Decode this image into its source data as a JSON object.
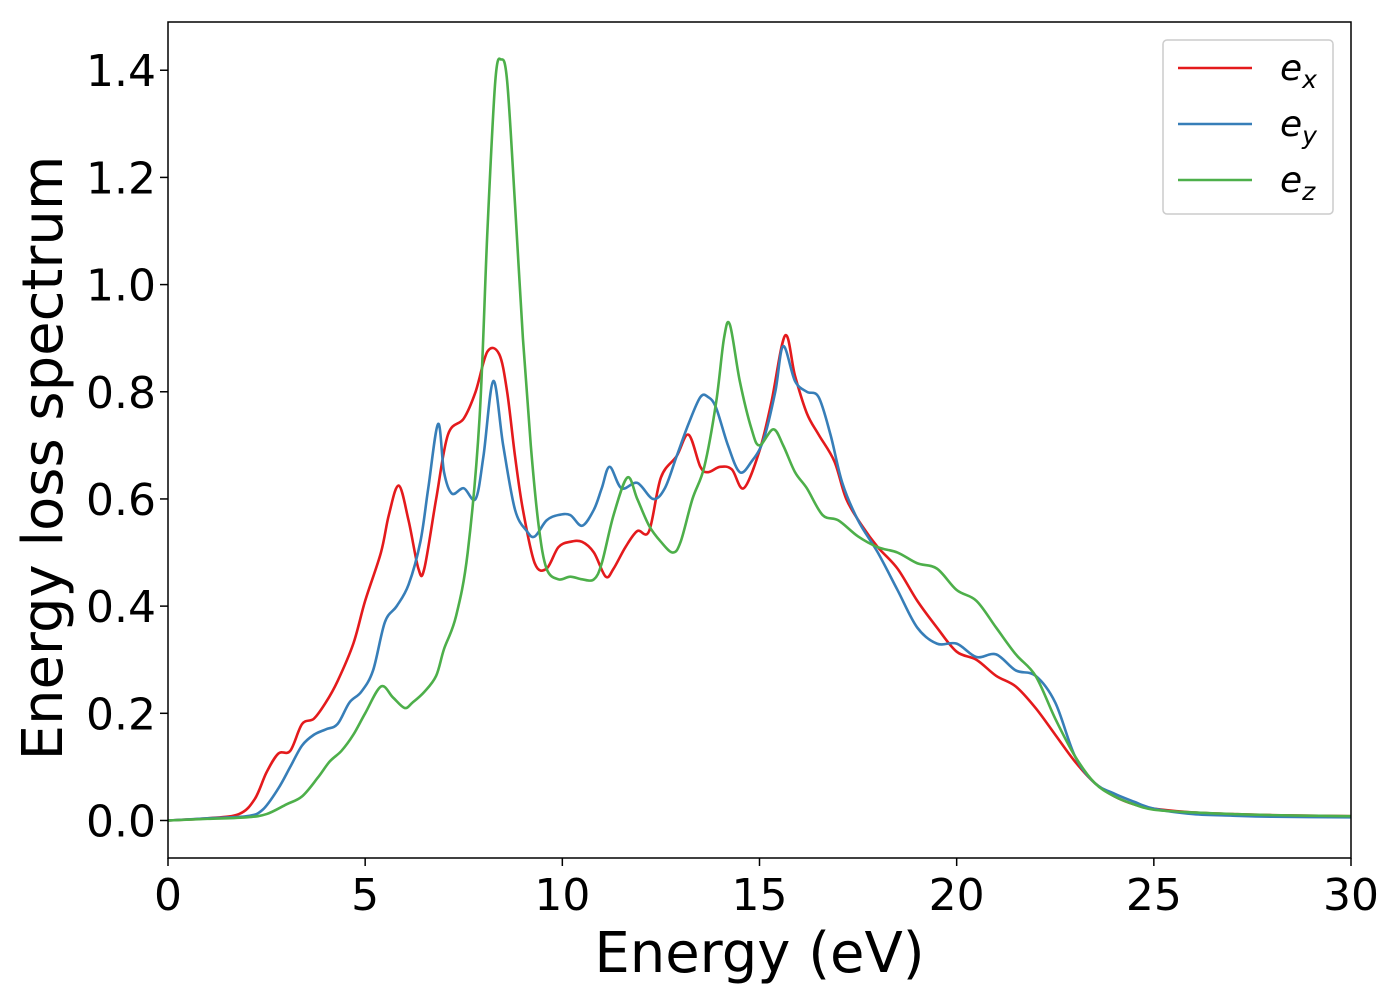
{
  "chart_data": {
    "type": "line",
    "title": "",
    "xlabel": "Energy (eV)",
    "ylabel": "Energy loss spectrum",
    "xlim": [
      0,
      30
    ],
    "ylim": [
      -0.07,
      1.49
    ],
    "xticks": [
      0,
      5,
      10,
      15,
      20,
      25,
      30
    ],
    "yticks": [
      0.0,
      0.2,
      0.4,
      0.6,
      0.8,
      1.0,
      1.2,
      1.4
    ],
    "xtick_labels": [
      "0",
      "5",
      "10",
      "15",
      "20",
      "25",
      "30"
    ],
    "ytick_labels": [
      "0.0",
      "0.2",
      "0.4",
      "0.6",
      "0.8",
      "1.0",
      "1.2",
      "1.4"
    ],
    "grid": false,
    "legend_position": "top-right",
    "series": [
      {
        "name": "e_x",
        "label_base": "e",
        "label_sub": "x",
        "color": "#e41a1c",
        "x": [
          0,
          1,
          1.8,
          2.2,
          2.5,
          2.8,
          3.1,
          3.4,
          3.7,
          4.0,
          4.3,
          4.7,
          5.0,
          5.4,
          5.6,
          5.85,
          6.1,
          6.35,
          6.5,
          6.8,
          7.1,
          7.5,
          7.8,
          8.1,
          8.4,
          8.6,
          8.8,
          9.0,
          9.3,
          9.6,
          9.9,
          10.2,
          10.5,
          10.8,
          11.1,
          11.3,
          11.6,
          11.9,
          12.2,
          12.5,
          12.9,
          13.2,
          13.5,
          13.7,
          14.0,
          14.3,
          14.6,
          15.0,
          15.3,
          15.65,
          15.9,
          16.2,
          16.5,
          16.9,
          17.2,
          17.6,
          18.0,
          18.5,
          19.0,
          19.5,
          20.0,
          20.5,
          21.0,
          21.5,
          22.0,
          22.5,
          23.0,
          23.5,
          24.0,
          24.5,
          25.0,
          26.0,
          27.0,
          28.0,
          30.0
        ],
        "values": [
          0,
          0.004,
          0.012,
          0.04,
          0.09,
          0.125,
          0.13,
          0.18,
          0.19,
          0.22,
          0.26,
          0.33,
          0.41,
          0.5,
          0.57,
          0.625,
          0.56,
          0.47,
          0.47,
          0.6,
          0.72,
          0.75,
          0.8,
          0.875,
          0.87,
          0.8,
          0.68,
          0.58,
          0.48,
          0.47,
          0.51,
          0.52,
          0.52,
          0.5,
          0.455,
          0.47,
          0.51,
          0.54,
          0.54,
          0.64,
          0.68,
          0.72,
          0.66,
          0.65,
          0.66,
          0.655,
          0.62,
          0.69,
          0.78,
          0.905,
          0.83,
          0.76,
          0.72,
          0.67,
          0.6,
          0.55,
          0.51,
          0.47,
          0.41,
          0.36,
          0.315,
          0.3,
          0.27,
          0.25,
          0.21,
          0.16,
          0.11,
          0.07,
          0.045,
          0.03,
          0.022,
          0.015,
          0.012,
          0.01,
          0.008
        ]
      },
      {
        "name": "e_y",
        "label_base": "e",
        "label_sub": "y",
        "color": "#377eb8",
        "x": [
          0,
          1,
          2.0,
          2.4,
          2.8,
          3.1,
          3.4,
          3.7,
          4.0,
          4.3,
          4.6,
          4.9,
          5.2,
          5.5,
          5.8,
          6.1,
          6.4,
          6.6,
          6.85,
          7.0,
          7.2,
          7.5,
          7.8,
          8.0,
          8.25,
          8.5,
          8.8,
          9.1,
          9.3,
          9.6,
          9.9,
          10.2,
          10.5,
          10.8,
          11.0,
          11.2,
          11.5,
          11.9,
          12.3,
          12.6,
          12.9,
          13.2,
          13.5,
          13.7,
          13.9,
          14.2,
          14.5,
          14.8,
          15.1,
          15.4,
          15.6,
          15.9,
          16.2,
          16.5,
          16.8,
          17.1,
          17.5,
          18.0,
          18.5,
          19.0,
          19.5,
          20.0,
          20.5,
          21.0,
          21.5,
          22.0,
          22.5,
          23.0,
          23.5,
          24.0,
          24.5,
          25.0,
          26.0,
          27.0,
          28.0,
          30.0
        ],
        "values": [
          0,
          0.004,
          0.008,
          0.02,
          0.06,
          0.1,
          0.14,
          0.16,
          0.17,
          0.18,
          0.22,
          0.24,
          0.28,
          0.37,
          0.4,
          0.44,
          0.52,
          0.62,
          0.74,
          0.65,
          0.61,
          0.62,
          0.6,
          0.68,
          0.82,
          0.7,
          0.58,
          0.54,
          0.53,
          0.56,
          0.57,
          0.57,
          0.55,
          0.58,
          0.62,
          0.66,
          0.62,
          0.63,
          0.6,
          0.62,
          0.68,
          0.74,
          0.79,
          0.79,
          0.77,
          0.7,
          0.65,
          0.67,
          0.71,
          0.8,
          0.885,
          0.82,
          0.8,
          0.79,
          0.72,
          0.63,
          0.56,
          0.5,
          0.43,
          0.36,
          0.33,
          0.33,
          0.305,
          0.31,
          0.28,
          0.27,
          0.22,
          0.12,
          0.07,
          0.05,
          0.035,
          0.022,
          0.012,
          0.009,
          0.007,
          0.006
        ]
      },
      {
        "name": "e_z",
        "label_base": "e",
        "label_sub": "z",
        "color": "#4daf4a",
        "x": [
          0,
          1,
          2.0,
          2.5,
          3.0,
          3.4,
          3.8,
          4.1,
          4.4,
          4.7,
          5.0,
          5.4,
          5.7,
          6.0,
          6.2,
          6.5,
          6.8,
          7.0,
          7.3,
          7.6,
          7.9,
          8.1,
          8.3,
          8.45,
          8.6,
          8.8,
          9.0,
          9.2,
          9.4,
          9.6,
          9.9,
          10.2,
          10.5,
          10.8,
          11.0,
          11.3,
          11.65,
          11.9,
          12.2,
          12.5,
          12.8,
          13.0,
          13.3,
          13.6,
          13.9,
          14.1,
          14.25,
          14.5,
          14.8,
          15.0,
          15.35,
          15.6,
          15.9,
          16.2,
          16.6,
          17.0,
          17.5,
          18.0,
          18.5,
          19.0,
          19.5,
          20.0,
          20.5,
          21.0,
          21.5,
          22.0,
          22.5,
          23.0,
          23.5,
          24.0,
          24.5,
          25.0,
          26.0,
          27.0,
          28.0,
          30.0
        ],
        "values": [
          0,
          0.003,
          0.006,
          0.012,
          0.03,
          0.045,
          0.08,
          0.11,
          0.13,
          0.16,
          0.2,
          0.25,
          0.23,
          0.21,
          0.22,
          0.24,
          0.27,
          0.32,
          0.38,
          0.5,
          0.75,
          1.1,
          1.38,
          1.42,
          1.38,
          1.15,
          0.9,
          0.7,
          0.55,
          0.47,
          0.45,
          0.455,
          0.45,
          0.45,
          0.48,
          0.57,
          0.64,
          0.6,
          0.55,
          0.52,
          0.5,
          0.52,
          0.6,
          0.66,
          0.78,
          0.9,
          0.925,
          0.82,
          0.73,
          0.7,
          0.73,
          0.7,
          0.65,
          0.62,
          0.57,
          0.56,
          0.53,
          0.51,
          0.5,
          0.48,
          0.47,
          0.43,
          0.41,
          0.36,
          0.31,
          0.27,
          0.19,
          0.12,
          0.07,
          0.045,
          0.03,
          0.02,
          0.015,
          0.012,
          0.01,
          0.008
        ]
      }
    ]
  }
}
